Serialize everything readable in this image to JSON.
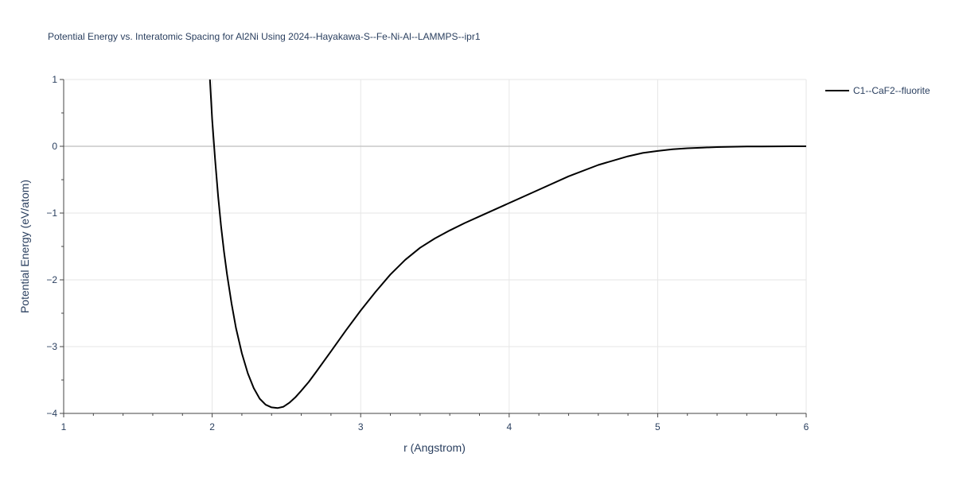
{
  "chart_data": {
    "type": "line",
    "title": "Potential Energy vs. Interatomic Spacing for Al2Ni Using 2024--Hayakawa-S--Fe-Ni-Al--LAMMPS--ipr1",
    "xlabel": "r (Angstrom)",
    "ylabel": "Potential Energy (eV/atom)",
    "xlim": [
      1,
      6
    ],
    "ylim": [
      -4,
      1
    ],
    "x_ticks": [
      1,
      2,
      3,
      4,
      5,
      6
    ],
    "x_tick_labels": [
      "1",
      "2",
      "3",
      "4",
      "5",
      "6"
    ],
    "y_ticks": [
      1,
      0,
      -1,
      -2,
      -3,
      -4
    ],
    "y_tick_labels": [
      "1",
      "0",
      "−1",
      "−2",
      "−3",
      "−4"
    ],
    "grid": true,
    "legend_position": "top-right",
    "series": [
      {
        "name": "C1--CaF2--fluorite",
        "color": "#000000",
        "x": [
          1.985,
          2.0,
          2.02,
          2.04,
          2.06,
          2.08,
          2.1,
          2.13,
          2.16,
          2.2,
          2.24,
          2.28,
          2.32,
          2.36,
          2.4,
          2.44,
          2.48,
          2.52,
          2.56,
          2.6,
          2.65,
          2.7,
          2.8,
          2.9,
          3.0,
          3.1,
          3.2,
          3.3,
          3.4,
          3.5,
          3.6,
          3.7,
          3.8,
          3.9,
          4.0,
          4.2,
          4.4,
          4.6,
          4.8,
          4.9,
          5.0,
          5.1,
          5.2,
          5.3,
          5.4,
          5.5,
          5.6,
          5.7,
          5.8,
          5.9,
          6.0
        ],
        "y": [
          1.0,
          0.4,
          -0.2,
          -0.75,
          -1.2,
          -1.58,
          -1.92,
          -2.35,
          -2.72,
          -3.1,
          -3.4,
          -3.62,
          -3.78,
          -3.87,
          -3.91,
          -3.92,
          -3.9,
          -3.84,
          -3.76,
          -3.66,
          -3.53,
          -3.38,
          -3.07,
          -2.76,
          -2.46,
          -2.18,
          -1.92,
          -1.7,
          -1.52,
          -1.38,
          -1.26,
          -1.15,
          -1.05,
          -0.95,
          -0.85,
          -0.65,
          -0.45,
          -0.28,
          -0.15,
          -0.1,
          -0.07,
          -0.045,
          -0.03,
          -0.02,
          -0.012,
          -0.007,
          -0.004,
          -0.002,
          -0.001,
          -0.0005,
          0.0
        ]
      }
    ]
  }
}
